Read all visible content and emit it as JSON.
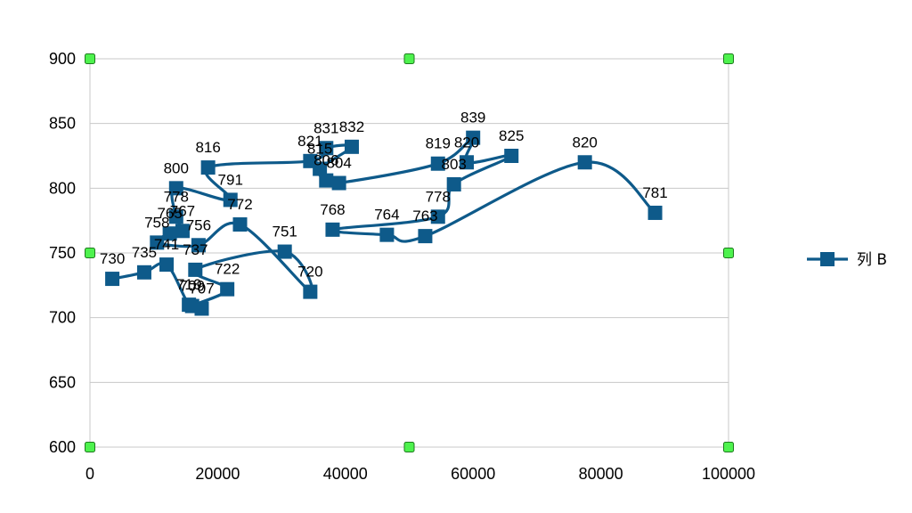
{
  "chart_data": {
    "type": "scatter",
    "smooth_line": true,
    "title": "",
    "xlabel": "",
    "ylabel": "",
    "xlim": [
      0,
      100000
    ],
    "ylim": [
      600,
      900
    ],
    "x_ticks": [
      "0",
      "20000",
      "40000",
      "60000",
      "80000",
      "100000"
    ],
    "y_ticks": [
      "600",
      "650",
      "700",
      "750",
      "800",
      "850",
      "900"
    ],
    "grid": "horizontal",
    "legend_position": "right",
    "selection_handles": true,
    "series": [
      {
        "name": "列 B",
        "color": "#0e5a8a",
        "marker": "square",
        "points": [
          {
            "x": 3500,
            "y": 730,
            "label": "730"
          },
          {
            "x": 8500,
            "y": 735,
            "label": "735"
          },
          {
            "x": 12000,
            "y": 741,
            "label": "741"
          },
          {
            "x": 15500,
            "y": 710,
            "label": "710"
          },
          {
            "x": 17500,
            "y": 707,
            "label": "707"
          },
          {
            "x": 16000,
            "y": 709,
            "label": "709"
          },
          {
            "x": 21500,
            "y": 722,
            "label": "722"
          },
          {
            "x": 16500,
            "y": 737,
            "label": "737"
          },
          {
            "x": 30500,
            "y": 751,
            "label": "751"
          },
          {
            "x": 34500,
            "y": 720,
            "label": "720"
          },
          {
            "x": 23500,
            "y": 772,
            "label": "772"
          },
          {
            "x": 17000,
            "y": 756,
            "label": "756"
          },
          {
            "x": 10500,
            "y": 758,
            "label": "758"
          },
          {
            "x": 12500,
            "y": 765,
            "label": "765"
          },
          {
            "x": 14500,
            "y": 767,
            "label": "767"
          },
          {
            "x": 13500,
            "y": 778,
            "label": "778"
          },
          {
            "x": 13500,
            "y": 800,
            "label": "800"
          },
          {
            "x": 22000,
            "y": 791,
            "label": "791"
          },
          {
            "x": 18500,
            "y": 816,
            "label": "816"
          },
          {
            "x": 34500,
            "y": 821,
            "label": "821"
          },
          {
            "x": 37000,
            "y": 831,
            "label": "831"
          },
          {
            "x": 41000,
            "y": 832,
            "label": "832"
          },
          {
            "x": 36000,
            "y": 815,
            "label": "815"
          },
          {
            "x": 37000,
            "y": 806,
            "label": "806"
          },
          {
            "x": 39000,
            "y": 804,
            "label": "804"
          },
          {
            "x": 54500,
            "y": 819,
            "label": "819"
          },
          {
            "x": 60000,
            "y": 839,
            "label": "839"
          },
          {
            "x": 59000,
            "y": 820,
            "label": "820"
          },
          {
            "x": 66000,
            "y": 825,
            "label": "825"
          },
          {
            "x": 57000,
            "y": 803,
            "label": "803"
          },
          {
            "x": 54500,
            "y": 778,
            "label": "778"
          },
          {
            "x": 38000,
            "y": 768,
            "label": "768"
          },
          {
            "x": 46500,
            "y": 764,
            "label": "764"
          },
          {
            "x": 52500,
            "y": 763,
            "label": "763"
          },
          {
            "x": 77500,
            "y": 820,
            "label": "820"
          },
          {
            "x": 88500,
            "y": 781,
            "label": "781"
          }
        ]
      }
    ]
  },
  "handle_color": "#4ef24e"
}
